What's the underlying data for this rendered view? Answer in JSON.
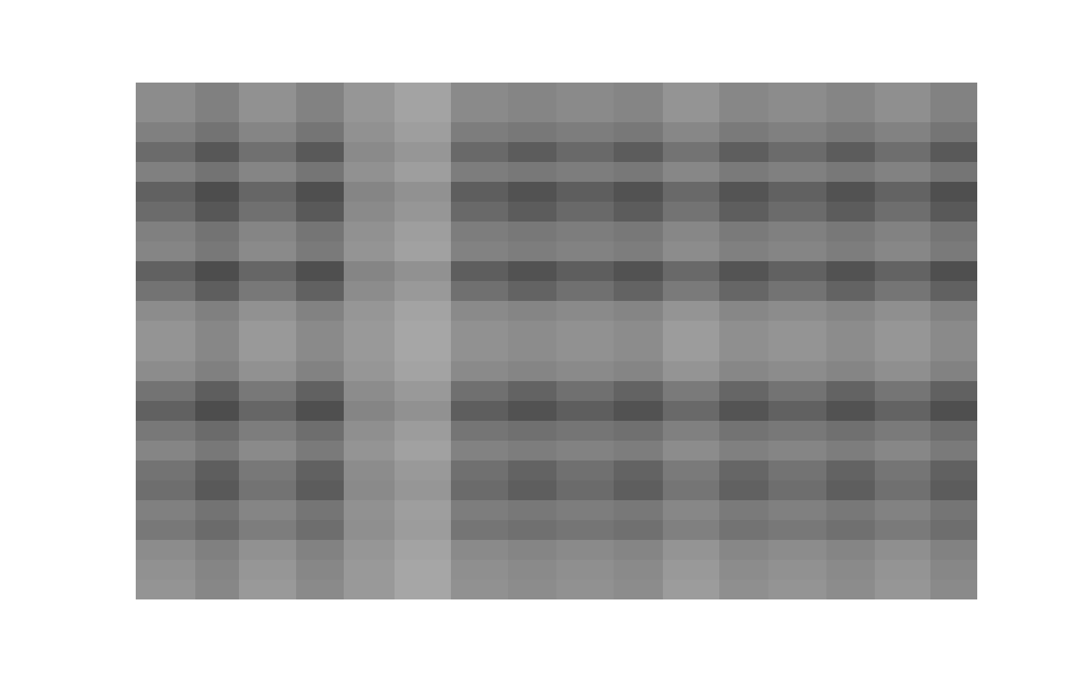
{
  "chart_data": {
    "type": "heatmap",
    "color": "gray",
    "tick_labels": false,
    "grid": false,
    "x": [
      0,
      75,
      130,
      202,
      262,
      326,
      397,
      469,
      530,
      602,
      664,
      735,
      797,
      870,
      931,
      1001,
      1060
    ],
    "y": [
      0,
      25,
      50,
      75,
      100,
      125,
      150,
      175,
      200,
      225,
      250,
      275,
      300,
      325,
      350,
      375,
      400,
      425,
      450,
      475,
      500,
      525,
      550,
      575,
      600,
      625,
      650
    ],
    "xlim": [
      0,
      1060
    ],
    "ylim": [
      650,
      0
    ],
    "xticks": [],
    "yticks": [],
    "zlim": [
      0,
      100
    ],
    "cells": [
      [
        55,
        50,
        57,
        51,
        59,
        64,
        54,
        52,
        54,
        52,
        58,
        53,
        55,
        52,
        56,
        51
      ],
      [
        55,
        50,
        57,
        51,
        59,
        64,
        54,
        52,
        54,
        52,
        58,
        53,
        55,
        52,
        56,
        51
      ],
      [
        50,
        45,
        52,
        46,
        57,
        62,
        49,
        47,
        49,
        47,
        53,
        48,
        50,
        47,
        51,
        46
      ],
      [
        42,
        34,
        44,
        35,
        54,
        59,
        41,
        36,
        41,
        36,
        45,
        37,
        42,
        36,
        43,
        35
      ],
      [
        50,
        45,
        52,
        46,
        57,
        62,
        49,
        47,
        49,
        47,
        53,
        48,
        50,
        47,
        51,
        46
      ],
      [
        38,
        30,
        40,
        31,
        52,
        57,
        37,
        32,
        37,
        32,
        41,
        33,
        38,
        32,
        39,
        31
      ],
      [
        42,
        34,
        44,
        35,
        54,
        59,
        41,
        36,
        41,
        36,
        45,
        37,
        42,
        36,
        43,
        35
      ],
      [
        50,
        45,
        52,
        46,
        57,
        62,
        49,
        47,
        49,
        47,
        53,
        48,
        50,
        47,
        51,
        46
      ],
      [
        52,
        47,
        54,
        48,
        58,
        63,
        51,
        49,
        51,
        49,
        55,
        50,
        52,
        49,
        53,
        48
      ],
      [
        38,
        30,
        40,
        31,
        52,
        57,
        37,
        32,
        37,
        32,
        41,
        33,
        38,
        32,
        39,
        31
      ],
      [
        45,
        37,
        47,
        38,
        55,
        60,
        44,
        39,
        44,
        39,
        48,
        40,
        45,
        39,
        46,
        38
      ],
      [
        55,
        50,
        57,
        51,
        59,
        64,
        54,
        52,
        54,
        52,
        58,
        53,
        55,
        52,
        56,
        51
      ],
      [
        58,
        53,
        60,
        54,
        60,
        65,
        57,
        55,
        57,
        55,
        61,
        56,
        58,
        55,
        59,
        54
      ],
      [
        58,
        53,
        60,
        54,
        60,
        65,
        57,
        55,
        57,
        55,
        61,
        56,
        58,
        55,
        59,
        54
      ],
      [
        55,
        50,
        57,
        51,
        59,
        64,
        54,
        52,
        54,
        52,
        58,
        53,
        55,
        52,
        56,
        51
      ],
      [
        45,
        37,
        47,
        38,
        55,
        60,
        44,
        39,
        44,
        39,
        48,
        40,
        45,
        39,
        46,
        38
      ],
      [
        38,
        30,
        40,
        31,
        52,
        57,
        37,
        32,
        37,
        32,
        41,
        33,
        38,
        32,
        39,
        31
      ],
      [
        47,
        42,
        49,
        43,
        56,
        61,
        46,
        44,
        46,
        44,
        50,
        45,
        47,
        44,
        48,
        43
      ],
      [
        52,
        47,
        54,
        48,
        58,
        63,
        51,
        49,
        51,
        49,
        55,
        50,
        52,
        49,
        53,
        48
      ],
      [
        45,
        37,
        47,
        38,
        55,
        60,
        44,
        39,
        44,
        39,
        48,
        40,
        45,
        39,
        46,
        38
      ],
      [
        43,
        35,
        45,
        36,
        54,
        59,
        42,
        37,
        42,
        37,
        46,
        38,
        43,
        37,
        44,
        36
      ],
      [
        50,
        45,
        52,
        46,
        57,
        62,
        49,
        47,
        49,
        47,
        53,
        48,
        50,
        47,
        51,
        46
      ],
      [
        47,
        42,
        49,
        43,
        56,
        61,
        46,
        44,
        46,
        44,
        50,
        45,
        47,
        44,
        48,
        43
      ],
      [
        55,
        50,
        57,
        51,
        59,
        64,
        54,
        52,
        54,
        52,
        58,
        53,
        55,
        52,
        56,
        51
      ],
      [
        57,
        52,
        59,
        53,
        60,
        65,
        56,
        54,
        56,
        54,
        60,
        55,
        57,
        54,
        58,
        53
      ],
      [
        58,
        53,
        60,
        54,
        60,
        65,
        57,
        55,
        57,
        55,
        61,
        56,
        58,
        55,
        59,
        54
      ]
    ]
  }
}
